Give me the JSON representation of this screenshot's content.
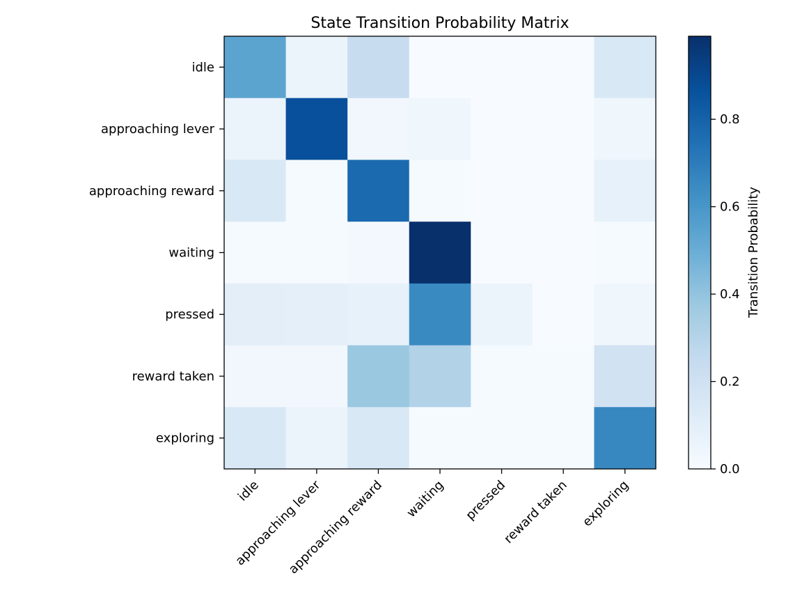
{
  "chart_data": {
    "type": "heatmap",
    "title": "State Transition Probability Matrix",
    "row_labels": [
      "idle",
      "approaching lever",
      "approaching reward",
      "waiting",
      "pressed",
      "reward taken",
      "exploring"
    ],
    "col_labels": [
      "idle",
      "approaching lever",
      "approaching reward",
      "waiting",
      "pressed",
      "reward taken",
      "exploring"
    ],
    "values": [
      [
        0.54,
        0.06,
        0.24,
        0.0,
        0.0,
        0.0,
        0.15
      ],
      [
        0.06,
        0.87,
        0.03,
        0.04,
        0.0,
        0.0,
        0.04
      ],
      [
        0.15,
        0.01,
        0.77,
        0.01,
        0.0,
        0.0,
        0.08
      ],
      [
        0.01,
        0.01,
        0.02,
        0.99,
        0.0,
        0.0,
        0.01
      ],
      [
        0.1,
        0.09,
        0.08,
        0.65,
        0.06,
        0.0,
        0.04
      ],
      [
        0.03,
        0.03,
        0.38,
        0.31,
        0.01,
        0.01,
        0.19
      ],
      [
        0.15,
        0.06,
        0.15,
        0.01,
        0.01,
        0.01,
        0.66
      ]
    ],
    "colormap": "Blues",
    "vmin": 0.0,
    "vmax": 0.99,
    "colorbar": {
      "label": "Transition Probability",
      "ticks": [
        0.0,
        0.2,
        0.4,
        0.6,
        0.8
      ],
      "tick_labels": [
        "0.0",
        "0.2",
        "0.4",
        "0.6",
        "0.8"
      ]
    },
    "grid": false,
    "legend": "none"
  }
}
